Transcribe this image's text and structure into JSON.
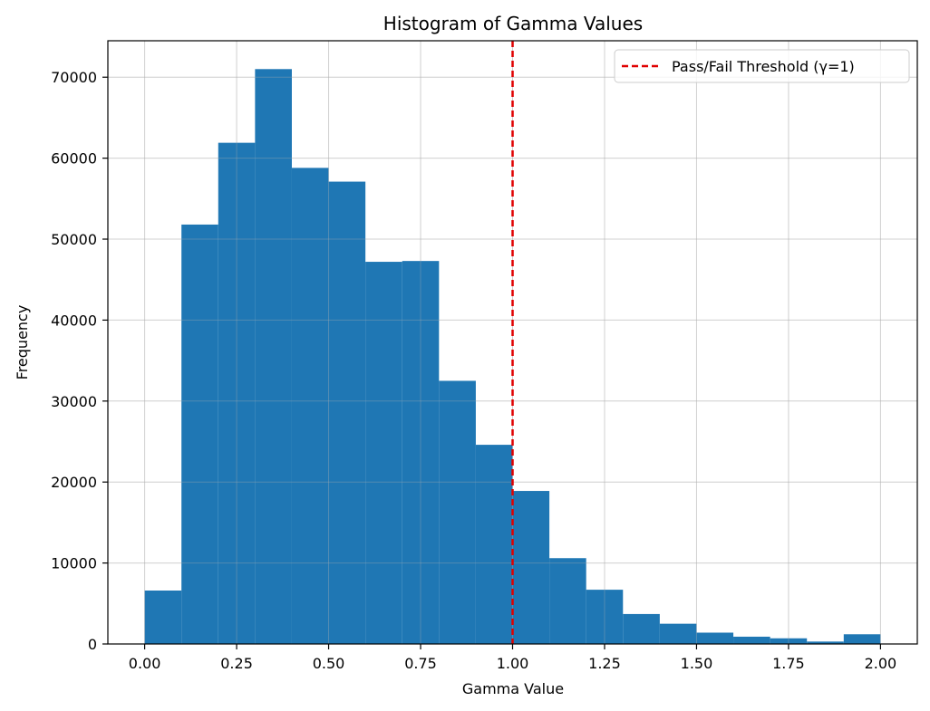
{
  "chart_data": {
    "type": "bar",
    "title": "Histogram of Gamma Values",
    "xlabel": "Gamma Value",
    "ylabel": "Frequency",
    "xlim": [
      -0.1,
      2.1
    ],
    "ylim": [
      0,
      74500
    ],
    "grid": true,
    "bin_edges": [
      0.0,
      0.1,
      0.2,
      0.3,
      0.4,
      0.5,
      0.6,
      0.7,
      0.8,
      0.9,
      1.0,
      1.1,
      1.2,
      1.3,
      1.4,
      1.5,
      1.6,
      1.7,
      1.8,
      1.9,
      2.0
    ],
    "values": [
      6600,
      51800,
      61900,
      71000,
      58800,
      57100,
      47200,
      47300,
      32500,
      24600,
      18900,
      10600,
      6700,
      3700,
      2500,
      1400,
      900,
      700,
      300,
      1200
    ],
    "x_ticks": [
      0.0,
      0.25,
      0.5,
      0.75,
      1.0,
      1.25,
      1.5,
      1.75,
      2.0
    ],
    "x_tick_labels": [
      "0.00",
      "0.25",
      "0.50",
      "0.75",
      "1.00",
      "1.25",
      "1.50",
      "1.75",
      "2.00"
    ],
    "y_ticks": [
      0,
      10000,
      20000,
      30000,
      40000,
      50000,
      60000,
      70000
    ],
    "y_tick_labels": [
      "0",
      "10000",
      "20000",
      "30000",
      "40000",
      "50000",
      "60000",
      "70000"
    ],
    "bar_color": "#1f77b4",
    "threshold": {
      "x": 1.0,
      "label": "Pass/Fail Threshold (γ=1)",
      "color": "#e00000",
      "style": "dashed"
    },
    "legend_position": "top-right"
  }
}
